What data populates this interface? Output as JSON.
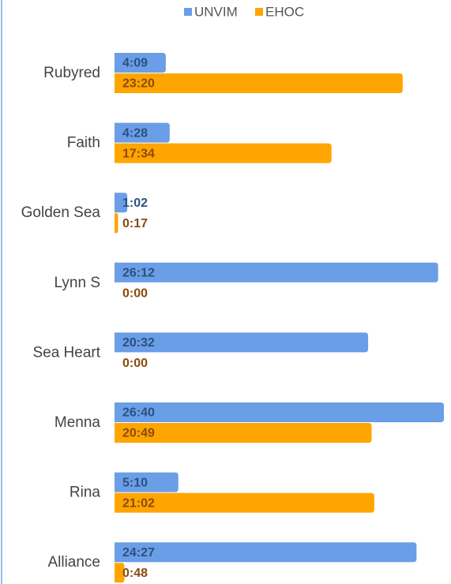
{
  "chart_data": {
    "type": "bar",
    "orientation": "horizontal",
    "categories": [
      "Rubyred",
      "Faith",
      "Golden Sea",
      "Lynn S",
      "Sea Heart",
      "Menna",
      "Rina",
      "Alliance"
    ],
    "series": [
      {
        "name": "UNVIM",
        "color": "#6a9ee6",
        "label_color": "#2c5080",
        "values": [
          249,
          268,
          62,
          1572,
          1232,
          1600,
          310,
          1467
        ],
        "value_labels": [
          "4:09",
          "4:28",
          "1:02",
          "26:12",
          "20:32",
          "26:40",
          "5:10",
          "24:27"
        ]
      },
      {
        "name": "EHOC",
        "color": "#ffa500",
        "label_color": "#8b4a0c",
        "values": [
          1400,
          1054,
          17,
          0,
          0,
          1249,
          1262,
          48
        ],
        "value_labels": [
          "23:20",
          "17:34",
          "0:17",
          "0:00",
          "0:00",
          "20:49",
          "21:02",
          "0:48"
        ]
      }
    ],
    "legend": "top"
  }
}
